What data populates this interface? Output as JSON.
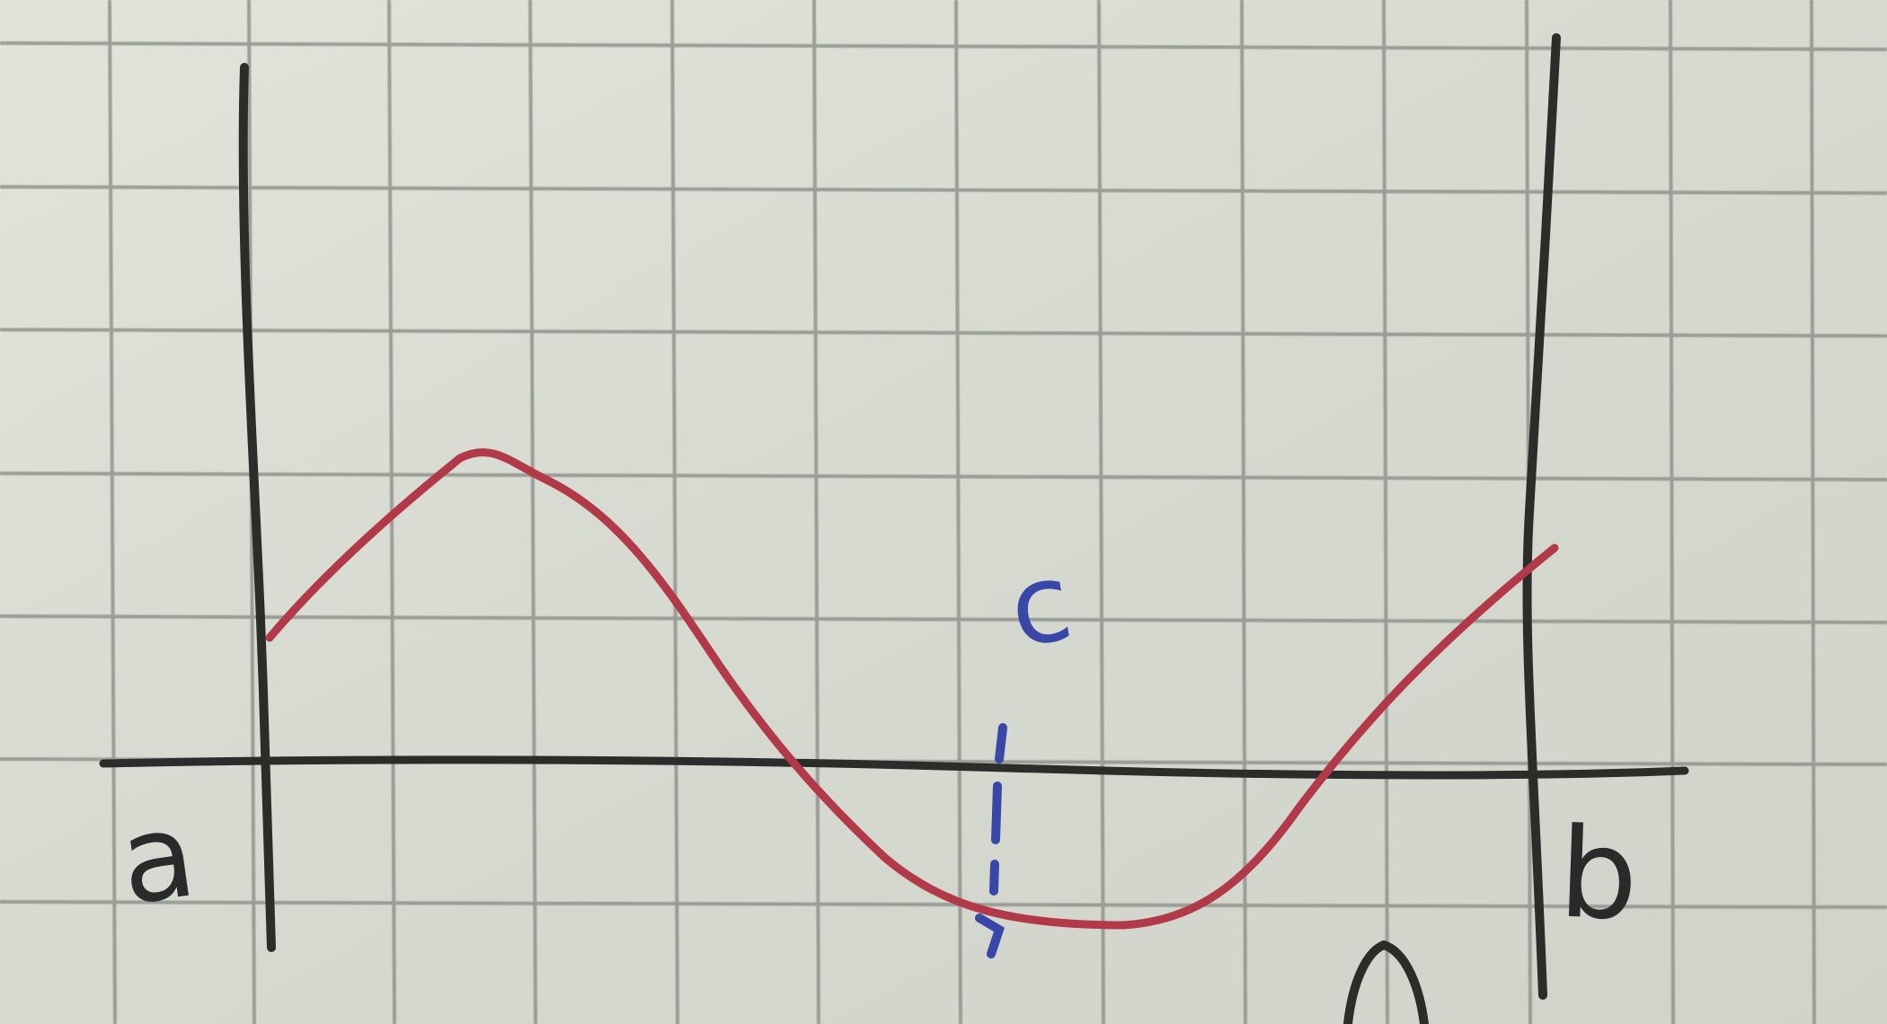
{
  "colors": {
    "paper": "#d8dbd2",
    "grid": "#8d918b",
    "pencil": "#2b2d2a",
    "curve": "#b23a48",
    "blue_ink": "#3948a8"
  },
  "labels": {
    "a": "a",
    "b": "b",
    "c": "c"
  }
}
